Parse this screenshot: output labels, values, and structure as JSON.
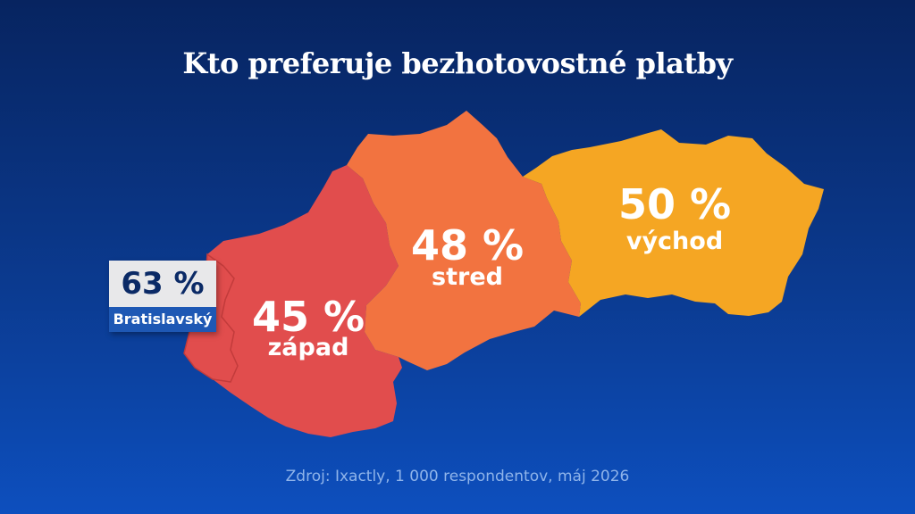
{
  "title": "Kto preferuje bezhotovostné platby",
  "map": {
    "regions": [
      {
        "id": "zapad",
        "label": "západ",
        "value": "45 %",
        "color": "#e14d4d"
      },
      {
        "id": "stred",
        "label": "stred",
        "value": "48 %",
        "color": "#f27340"
      },
      {
        "id": "vychod",
        "label": "východ",
        "value": "50 %",
        "color": "#f5a623"
      }
    ],
    "callout": {
      "label": "Bratislavský",
      "value": "63 %"
    }
  },
  "source": "Zdroj: Ixactly, 1 000 respondentov, máj 2026"
}
